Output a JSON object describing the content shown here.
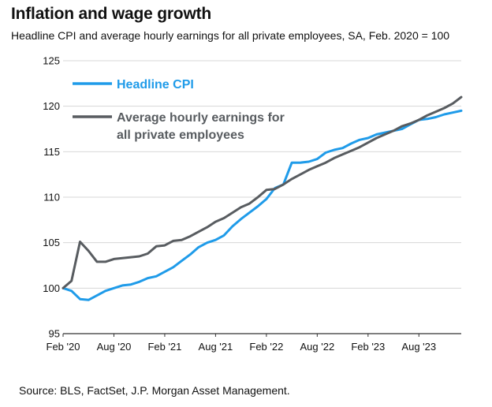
{
  "header": {
    "title": "Inflation and wage growth",
    "subtitle": "Headline CPI and average hourly earnings for all private employees, SA, Feb. 2020 = 100"
  },
  "footer": {
    "source": "Source: BLS, FactSet, J.P. Morgan Asset Management."
  },
  "chart_data": {
    "type": "line",
    "title": "Inflation and wage growth",
    "subtitle": "Headline CPI and average hourly earnings for all private employees, SA, Feb. 2020 = 100",
    "xlabel": "",
    "ylabel": "",
    "ylim": [
      95,
      125
    ],
    "yticks": [
      95,
      100,
      105,
      110,
      115,
      120,
      125
    ],
    "x_range": [
      "2020-02",
      "2024-01"
    ],
    "xticks": [
      {
        "x": "2020-02",
        "label": "Feb '20"
      },
      {
        "x": "2020-08",
        "label": "Aug '20"
      },
      {
        "x": "2021-02",
        "label": "Feb '21"
      },
      {
        "x": "2021-08",
        "label": "Aug '21"
      },
      {
        "x": "2022-02",
        "label": "Feb '22"
      },
      {
        "x": "2022-08",
        "label": "Aug '22"
      },
      {
        "x": "2023-02",
        "label": "Feb '23"
      },
      {
        "x": "2023-08",
        "label": "Aug '23"
      }
    ],
    "grid": {
      "horizontal": true,
      "vertical": false
    },
    "legend_position": "top-left",
    "x": [
      "2020-02",
      "2020-03",
      "2020-04",
      "2020-05",
      "2020-06",
      "2020-07",
      "2020-08",
      "2020-09",
      "2020-10",
      "2020-11",
      "2020-12",
      "2021-01",
      "2021-02",
      "2021-03",
      "2021-04",
      "2021-05",
      "2021-06",
      "2021-07",
      "2021-08",
      "2021-09",
      "2021-10",
      "2021-11",
      "2021-12",
      "2022-01",
      "2022-02",
      "2022-03",
      "2022-04",
      "2022-05",
      "2022-06",
      "2022-07",
      "2022-08",
      "2022-09",
      "2022-10",
      "2022-11",
      "2022-12",
      "2023-01",
      "2023-02",
      "2023-03",
      "2023-04",
      "2023-05",
      "2023-06",
      "2023-07",
      "2023-08",
      "2023-09",
      "2023-10",
      "2023-11",
      "2023-12",
      "2024-01"
    ],
    "series": [
      {
        "name": "Headline CPI",
        "color": "#1f9be9",
        "values": [
          100.0,
          99.7,
          98.8,
          98.7,
          99.2,
          99.7,
          100.0,
          100.3,
          100.4,
          100.7,
          101.1,
          101.3,
          101.8,
          102.3,
          103.0,
          103.7,
          104.5,
          105.0,
          105.3,
          105.8,
          106.8,
          107.6,
          108.3,
          109.0,
          109.8,
          111.0,
          111.4,
          113.8,
          113.8,
          113.9,
          114.2,
          114.9,
          115.2,
          115.4,
          115.9,
          116.3,
          116.5,
          116.9,
          117.1,
          117.3,
          117.5,
          118.0,
          118.5,
          118.6,
          118.8,
          119.1,
          119.3,
          119.5
        ]
      },
      {
        "name": "Average hourly earnings for all private employees",
        "color": "#585c60",
        "values": [
          100.0,
          100.8,
          105.1,
          104.1,
          102.9,
          102.9,
          103.2,
          103.3,
          103.4,
          103.5,
          103.8,
          104.6,
          104.7,
          105.2,
          105.3,
          105.7,
          106.2,
          106.7,
          107.3,
          107.7,
          108.3,
          108.9,
          109.3,
          110.0,
          110.8,
          110.9,
          111.4,
          112.0,
          112.5,
          113.0,
          113.4,
          113.8,
          114.3,
          114.7,
          115.1,
          115.5,
          116.0,
          116.5,
          116.9,
          117.3,
          117.8,
          118.1,
          118.5,
          119.0,
          119.4,
          119.8,
          120.3,
          121.0
        ]
      }
    ],
    "legend_entries": [
      {
        "series": 0,
        "lines": [
          "Headline CPI"
        ]
      },
      {
        "series": 1,
        "lines": [
          "Average hourly earnings for",
          "all private employees"
        ]
      }
    ]
  }
}
